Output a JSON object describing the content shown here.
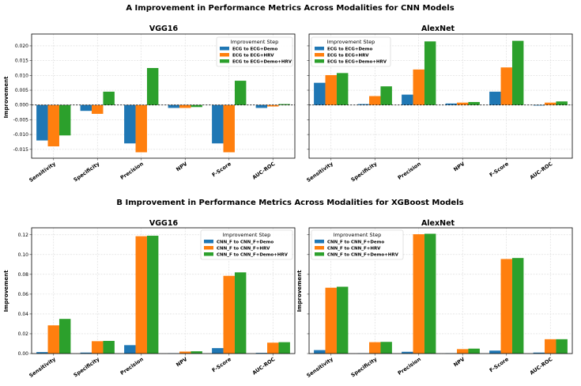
{
  "chart_data": [
    {
      "type": "bar",
      "section_title": "A  Improvement in Performance Metrics Across Modalities for CNN Models",
      "title": "VGG16",
      "ylabel": "Improvement",
      "ylim": [
        -0.018,
        0.024
      ],
      "yticks": [
        -0.015,
        -0.01,
        -0.005,
        0.0,
        0.005,
        0.01,
        0.015,
        0.02
      ],
      "ytick_labels": [
        "-0.015",
        "-0.010",
        "-0.005",
        "0.000",
        "0.005",
        "0.010",
        "0.015",
        "0.020"
      ],
      "show_yticklabels": true,
      "zero_line": true,
      "legend_title": "Improvement Step",
      "legend_position": "top-right",
      "categories": [
        "Sensitivity",
        "Specificity",
        "Precision",
        "NPV",
        "F-Score",
        "AUC-ROC"
      ],
      "series": [
        {
          "name": "ECG to ECG+Demo",
          "color": "#1f77b4",
          "values": [
            -0.012,
            -0.002,
            -0.013,
            -0.001,
            -0.013,
            -0.001
          ]
        },
        {
          "name": "ECG to ECG+HRV",
          "color": "#ff7f0e",
          "values": [
            -0.014,
            -0.003,
            -0.016,
            -0.001,
            -0.016,
            -0.0005
          ]
        },
        {
          "name": "ECG to ECG+Demo+HRV",
          "color": "#2ca02c",
          "values": [
            -0.0103,
            0.0045,
            0.0125,
            -0.0007,
            0.0082,
            0.0003
          ]
        }
      ]
    },
    {
      "type": "bar",
      "title": "AlexNet",
      "ylabel": "",
      "ylim": [
        -0.018,
        0.024
      ],
      "yticks": [
        -0.015,
        -0.01,
        -0.005,
        0.0,
        0.005,
        0.01,
        0.015,
        0.02
      ],
      "ytick_labels": [],
      "show_yticklabels": false,
      "zero_line": true,
      "legend_title": "Improvement Step",
      "legend_position": "top-left",
      "categories": [
        "Sensitivity",
        "Specificity",
        "Precision",
        "NPV",
        "F-Score",
        "AUC-ROC"
      ],
      "series": [
        {
          "name": "ECG to ECG+Demo",
          "color": "#1f77b4",
          "values": [
            0.0075,
            0.0003,
            0.0035,
            0.0005,
            0.0045,
            -0.0002
          ]
        },
        {
          "name": "ECG to ECG+HRV",
          "color": "#ff7f0e",
          "values": [
            0.0101,
            0.003,
            0.012,
            0.0008,
            0.0127,
            0.0008
          ]
        },
        {
          "name": "ECG to ECG+Demo+HRV",
          "color": "#2ca02c",
          "values": [
            0.0108,
            0.0063,
            0.0215,
            0.001,
            0.0217,
            0.0012
          ]
        }
      ]
    },
    {
      "type": "bar",
      "section_title": "B  Improvement in Performance Metrics Across Modalities for XGBoost Models",
      "title": "VGG16",
      "ylabel": "Improvement",
      "ylim": [
        0,
        0.127
      ],
      "yticks": [
        0.0,
        0.02,
        0.04,
        0.06,
        0.08,
        0.1,
        0.12
      ],
      "ytick_labels": [
        "0.00",
        "0.02",
        "0.04",
        "0.06",
        "0.08",
        "0.10",
        "0.12"
      ],
      "show_yticklabels": true,
      "zero_line": false,
      "legend_title": "Improvement Step",
      "legend_position": "top-right",
      "categories": [
        "Sensitivity",
        "Specificity",
        "Precision",
        "NPV",
        "F-Score",
        "AUC-ROC"
      ],
      "series": [
        {
          "name": "CNN_F to CNN_F+Demo",
          "color": "#1f77b4",
          "values": [
            0.0015,
            0.001,
            0.0085,
            0.0003,
            0.0055,
            0.0007
          ]
        },
        {
          "name": "CNN_F to CNN_F+HRV",
          "color": "#ff7f0e",
          "values": [
            0.0285,
            0.0125,
            0.1185,
            0.002,
            0.0785,
            0.011
          ]
        },
        {
          "name": "CNN_F to CNN_F+Demo+HRV",
          "color": "#2ca02c",
          "values": [
            0.035,
            0.0128,
            0.119,
            0.0023,
            0.082,
            0.0115
          ]
        }
      ]
    },
    {
      "type": "bar",
      "title": "AlexNet",
      "ylabel": "Improvement",
      "ylim": [
        0,
        0.127
      ],
      "yticks": [
        0.0,
        0.02,
        0.04,
        0.06,
        0.08,
        0.1,
        0.12
      ],
      "ytick_labels": [],
      "show_yticklabels": false,
      "zero_line": false,
      "legend_title": "Improvement Step",
      "legend_position": "top-left",
      "categories": [
        "Sensitivity",
        "Specificity",
        "Precision",
        "NPV",
        "F-Score",
        "AUC-ROC"
      ],
      "series": [
        {
          "name": "CNN_F to CNN_F+Demo",
          "color": "#1f77b4",
          "values": [
            0.0035,
            0.0003,
            0.0018,
            0.0003,
            0.003,
            0.001
          ]
        },
        {
          "name": "CNN_F to CNN_F+HRV",
          "color": "#ff7f0e",
          "values": [
            0.0665,
            0.0115,
            0.1205,
            0.0045,
            0.0955,
            0.0145
          ]
        },
        {
          "name": "CNN_F to CNN_F+Demo+HRV",
          "color": "#2ca02c",
          "values": [
            0.0675,
            0.0118,
            0.121,
            0.005,
            0.0965,
            0.0145
          ]
        }
      ]
    }
  ]
}
